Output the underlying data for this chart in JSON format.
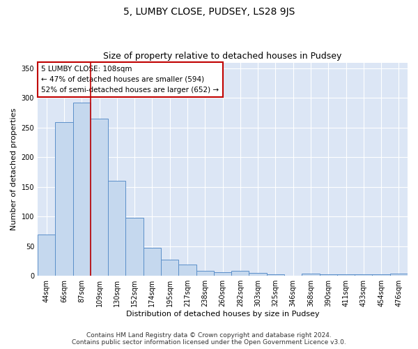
{
  "title": "5, LUMBY CLOSE, PUDSEY, LS28 9JS",
  "subtitle": "Size of property relative to detached houses in Pudsey",
  "xlabel": "Distribution of detached houses by size in Pudsey",
  "ylabel": "Number of detached properties",
  "bar_labels": [
    "44sqm",
    "66sqm",
    "87sqm",
    "109sqm",
    "130sqm",
    "152sqm",
    "174sqm",
    "195sqm",
    "217sqm",
    "238sqm",
    "260sqm",
    "282sqm",
    "303sqm",
    "325sqm",
    "346sqm",
    "368sqm",
    "390sqm",
    "411sqm",
    "433sqm",
    "454sqm",
    "476sqm"
  ],
  "bar_values": [
    70,
    259,
    292,
    265,
    160,
    98,
    47,
    27,
    19,
    8,
    6,
    8,
    5,
    3,
    0,
    4,
    3,
    3,
    3,
    3,
    4
  ],
  "bar_color": "#c5d8ee",
  "bar_edge_color": "#5b8fc9",
  "subject_bin_index": 3,
  "subject_line_color": "#c00000",
  "annotation_text": "5 LUMBY CLOSE: 108sqm\n← 47% of detached houses are smaller (594)\n52% of semi-detached houses are larger (652) →",
  "annotation_box_color": "#ffffff",
  "annotation_box_edge_color": "#c00000",
  "ylim": [
    0,
    360
  ],
  "yticks": [
    0,
    50,
    100,
    150,
    200,
    250,
    300,
    350
  ],
  "background_color": "#dce6f5",
  "footer_text": "Contains HM Land Registry data © Crown copyright and database right 2024.\nContains public sector information licensed under the Open Government Licence v3.0.",
  "title_fontsize": 10,
  "subtitle_fontsize": 9,
  "axis_label_fontsize": 8,
  "tick_fontsize": 7,
  "annotation_fontsize": 7.5,
  "footer_fontsize": 6.5
}
